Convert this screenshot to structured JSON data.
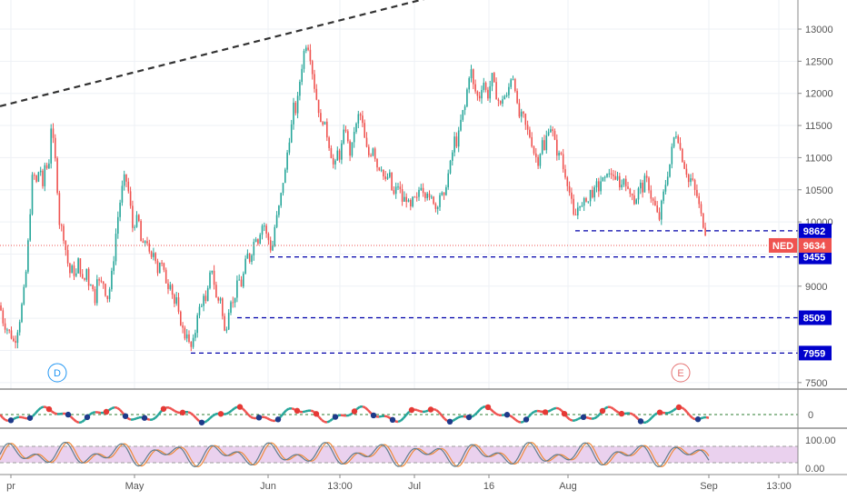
{
  "chart_data": {
    "type": "candlestick",
    "ticker": "NED",
    "last_price": "9634",
    "price_axis": {
      "ticks": [
        "13000",
        "12500",
        "12000",
        "11500",
        "11000",
        "10500",
        "10000",
        "9000",
        "7500"
      ],
      "ylim": [
        7500,
        13200
      ]
    },
    "time_axis": {
      "ticks": [
        "pr",
        "May",
        "Jun",
        "13:00",
        "Jul",
        "16",
        "Aug",
        "Sep",
        "13:00"
      ]
    },
    "price_path": [
      [
        0,
        8700
      ],
      [
        4,
        8400
      ],
      [
        10,
        8300
      ],
      [
        16,
        8100
      ],
      [
        22,
        8500
      ],
      [
        28,
        9100
      ],
      [
        32,
        9900
      ],
      [
        36,
        10800
      ],
      [
        40,
        10600
      ],
      [
        44,
        10900
      ],
      [
        47,
        10500
      ],
      [
        50,
        11000
      ],
      [
        53,
        10700
      ],
      [
        56,
        11500
      ],
      [
        59,
        11200
      ],
      [
        62,
        10800
      ],
      [
        65,
        10000
      ],
      [
        68,
        9900
      ],
      [
        71,
        9700
      ],
      [
        74,
        9400
      ],
      [
        77,
        9200
      ],
      [
        80,
        9300
      ],
      [
        83,
        9100
      ],
      [
        86,
        9400
      ],
      [
        89,
        9200
      ],
      [
        92,
        9000
      ],
      [
        95,
        9300
      ],
      [
        98,
        9000
      ],
      [
        101,
        9100
      ],
      [
        104,
        8700
      ],
      [
        107,
        9200
      ],
      [
        110,
        9000
      ],
      [
        113,
        9100
      ],
      [
        116,
        8900
      ],
      [
        119,
        8800
      ],
      [
        122,
        9100
      ],
      [
        125,
        9400
      ],
      [
        128,
        9900
      ],
      [
        131,
        10200
      ],
      [
        134,
        10500
      ],
      [
        137,
        10700
      ],
      [
        140,
        10600
      ],
      [
        143,
        10300
      ],
      [
        146,
        9900
      ],
      [
        149,
        10000
      ],
      [
        152,
        10100
      ],
      [
        155,
        9700
      ],
      [
        158,
        9600
      ],
      [
        161,
        9800
      ],
      [
        164,
        9500
      ],
      [
        167,
        9400
      ],
      [
        170,
        9600
      ],
      [
        173,
        9200
      ],
      [
        176,
        9400
      ],
      [
        179,
        9300
      ],
      [
        182,
        9100
      ],
      [
        185,
        9000
      ],
      [
        188,
        9100
      ],
      [
        191,
        8700
      ],
      [
        194,
        8800
      ],
      [
        197,
        8500
      ],
      [
        200,
        8400
      ],
      [
        203,
        8200
      ],
      [
        206,
        8300
      ],
      [
        209,
        8000
      ],
      [
        212,
        8100
      ],
      [
        215,
        8300
      ],
      [
        218,
        8700
      ],
      [
        221,
        8600
      ],
      [
        224,
        8900
      ],
      [
        227,
        8700
      ],
      [
        230,
        9100
      ],
      [
        233,
        9300
      ],
      [
        236,
        9000
      ],
      [
        239,
        8700
      ],
      [
        242,
        8900
      ],
      [
        245,
        8500
      ],
      [
        248,
        8200
      ],
      [
        251,
        8600
      ],
      [
        254,
        8800
      ],
      [
        257,
        8700
      ],
      [
        260,
        9000
      ],
      [
        263,
        9100
      ],
      [
        266,
        9000
      ],
      [
        269,
        9300
      ],
      [
        272,
        9500
      ],
      [
        275,
        9400
      ],
      [
        278,
        9600
      ],
      [
        281,
        9800
      ],
      [
        284,
        9700
      ],
      [
        287,
        9900
      ],
      [
        290,
        10000
      ],
      [
        293,
        9800
      ],
      [
        296,
        9700
      ],
      [
        299,
        9500
      ],
      [
        302,
        9900
      ],
      [
        305,
        10100
      ],
      [
        308,
        10300
      ],
      [
        311,
        10600
      ],
      [
        314,
        10800
      ],
      [
        317,
        11200
      ],
      [
        320,
        11400
      ],
      [
        323,
        11800
      ],
      [
        326,
        11700
      ],
      [
        329,
        12100
      ],
      [
        332,
        12400
      ],
      [
        335,
        12700
      ],
      [
        338,
        12800
      ],
      [
        341,
        12600
      ],
      [
        344,
        12300
      ],
      [
        347,
        12000
      ],
      [
        350,
        11800
      ],
      [
        353,
        11500
      ],
      [
        356,
        11600
      ],
      [
        359,
        11400
      ],
      [
        362,
        11200
      ],
      [
        365,
        11000
      ],
      [
        368,
        10800
      ],
      [
        371,
        11100
      ],
      [
        374,
        11000
      ],
      [
        377,
        11300
      ],
      [
        380,
        11500
      ],
      [
        383,
        11200
      ],
      [
        386,
        11000
      ],
      [
        389,
        11400
      ],
      [
        392,
        11500
      ],
      [
        395,
        11700
      ],
      [
        398,
        11600
      ],
      [
        401,
        11300
      ],
      [
        404,
        11100
      ],
      [
        407,
        11000
      ],
      [
        410,
        11200
      ],
      [
        413,
        11000
      ],
      [
        416,
        10800
      ],
      [
        419,
        10900
      ],
      [
        422,
        10700
      ],
      [
        425,
        10600
      ],
      [
        428,
        10800
      ],
      [
        431,
        10500
      ],
      [
        434,
        10400
      ],
      [
        437,
        10600
      ],
      [
        440,
        10500
      ],
      [
        443,
        10300
      ],
      [
        446,
        10400
      ],
      [
        449,
        10300
      ],
      [
        452,
        10200
      ],
      [
        455,
        10400
      ],
      [
        458,
        10300
      ],
      [
        461,
        10500
      ],
      [
        464,
        10600
      ],
      [
        467,
        10400
      ],
      [
        470,
        10500
      ],
      [
        473,
        10300
      ],
      [
        476,
        10400
      ],
      [
        479,
        10200
      ],
      [
        482,
        10300
      ],
      [
        485,
        10500
      ],
      [
        488,
        10300
      ],
      [
        491,
        10600
      ],
      [
        494,
        10800
      ],
      [
        497,
        11000
      ],
      [
        500,
        11300
      ],
      [
        503,
        11200
      ],
      [
        506,
        11500
      ],
      [
        509,
        11700
      ],
      [
        512,
        11800
      ],
      [
        515,
        12200
      ],
      [
        518,
        12400
      ],
      [
        521,
        12100
      ],
      [
        524,
        12000
      ],
      [
        527,
        11900
      ],
      [
        530,
        12100
      ],
      [
        533,
        12200
      ],
      [
        536,
        11900
      ],
      [
        539,
        12100
      ],
      [
        542,
        12300
      ],
      [
        545,
        12000
      ],
      [
        548,
        11900
      ],
      [
        551,
        11800
      ],
      [
        554,
        12000
      ],
      [
        557,
        11900
      ],
      [
        560,
        12100
      ],
      [
        563,
        12300
      ],
      [
        566,
        12200
      ],
      [
        569,
        11800
      ],
      [
        572,
        11600
      ],
      [
        575,
        11700
      ],
      [
        578,
        11500
      ],
      [
        581,
        11400
      ],
      [
        584,
        11300
      ],
      [
        587,
        11100
      ],
      [
        590,
        11000
      ],
      [
        593,
        10900
      ],
      [
        596,
        11300
      ],
      [
        599,
        11100
      ],
      [
        602,
        11400
      ],
      [
        605,
        11500
      ],
      [
        608,
        11400
      ],
      [
        611,
        11200
      ],
      [
        614,
        11000
      ],
      [
        617,
        11100
      ],
      [
        620,
        10800
      ],
      [
        623,
        10700
      ],
      [
        626,
        10500
      ],
      [
        629,
        10300
      ],
      [
        632,
        10000
      ],
      [
        635,
        10200
      ],
      [
        638,
        10300
      ],
      [
        641,
        10200
      ],
      [
        644,
        10400
      ],
      [
        647,
        10300
      ],
      [
        650,
        10500
      ],
      [
        653,
        10400
      ],
      [
        656,
        10600
      ],
      [
        659,
        10500
      ],
      [
        662,
        10700
      ],
      [
        665,
        10600
      ],
      [
        668,
        10800
      ],
      [
        671,
        10700
      ],
      [
        674,
        10800
      ],
      [
        677,
        10600
      ],
      [
        680,
        10700
      ],
      [
        683,
        10500
      ],
      [
        686,
        10700
      ],
      [
        689,
        10600
      ],
      [
        692,
        10400
      ],
      [
        695,
        10500
      ],
      [
        698,
        10300
      ],
      [
        701,
        10400
      ],
      [
        704,
        10600
      ],
      [
        707,
        10500
      ],
      [
        710,
        10700
      ],
      [
        713,
        10600
      ],
      [
        716,
        10400
      ],
      [
        719,
        10300
      ],
      [
        722,
        10200
      ],
      [
        725,
        10000
      ],
      [
        728,
        10300
      ],
      [
        731,
        10500
      ],
      [
        734,
        10700
      ],
      [
        737,
        10900
      ],
      [
        740,
        11200
      ],
      [
        743,
        11400
      ],
      [
        746,
        11300
      ],
      [
        749,
        11100
      ],
      [
        752,
        10900
      ],
      [
        755,
        10800
      ],
      [
        758,
        10600
      ],
      [
        761,
        10700
      ],
      [
        764,
        10500
      ],
      [
        767,
        10400
      ],
      [
        770,
        10200
      ],
      [
        773,
        10000
      ],
      [
        776,
        9850
      ],
      [
        779,
        9634
      ]
    ],
    "trendline": {
      "style": "dashed",
      "color": "#333333",
      "from": [
        0,
        11800
      ],
      "to": [
        490,
        13550
      ]
    },
    "support_levels": [
      {
        "value": 9862,
        "label": "9862",
        "from_x": 633
      },
      {
        "value": 9455,
        "label": "9455",
        "from_x": 297
      },
      {
        "value": 8509,
        "label": "8509",
        "from_x": 261
      },
      {
        "value": 7959,
        "label": "7959",
        "from_x": 210
      }
    ],
    "event_markers": [
      {
        "label": "D",
        "x": 63,
        "color": "#2196f3"
      },
      {
        "label": "E",
        "x": 749,
        "color": "#e57373"
      }
    ],
    "oscillator1": {
      "zero_label": "0"
    },
    "oscillator2": {
      "ticks": [
        "100.00",
        "0.00"
      ],
      "band": [
        20,
        80
      ]
    },
    "colors": {
      "up": "#26a69a",
      "down": "#ef5350",
      "level_line": "#0000aa",
      "level_label_bg": "#0000cc",
      "last_price": "#ef5350",
      "osc_band": "#e1bee7",
      "stoch_k": "#607d8b",
      "stoch_d": "#ef8a3a"
    }
  }
}
